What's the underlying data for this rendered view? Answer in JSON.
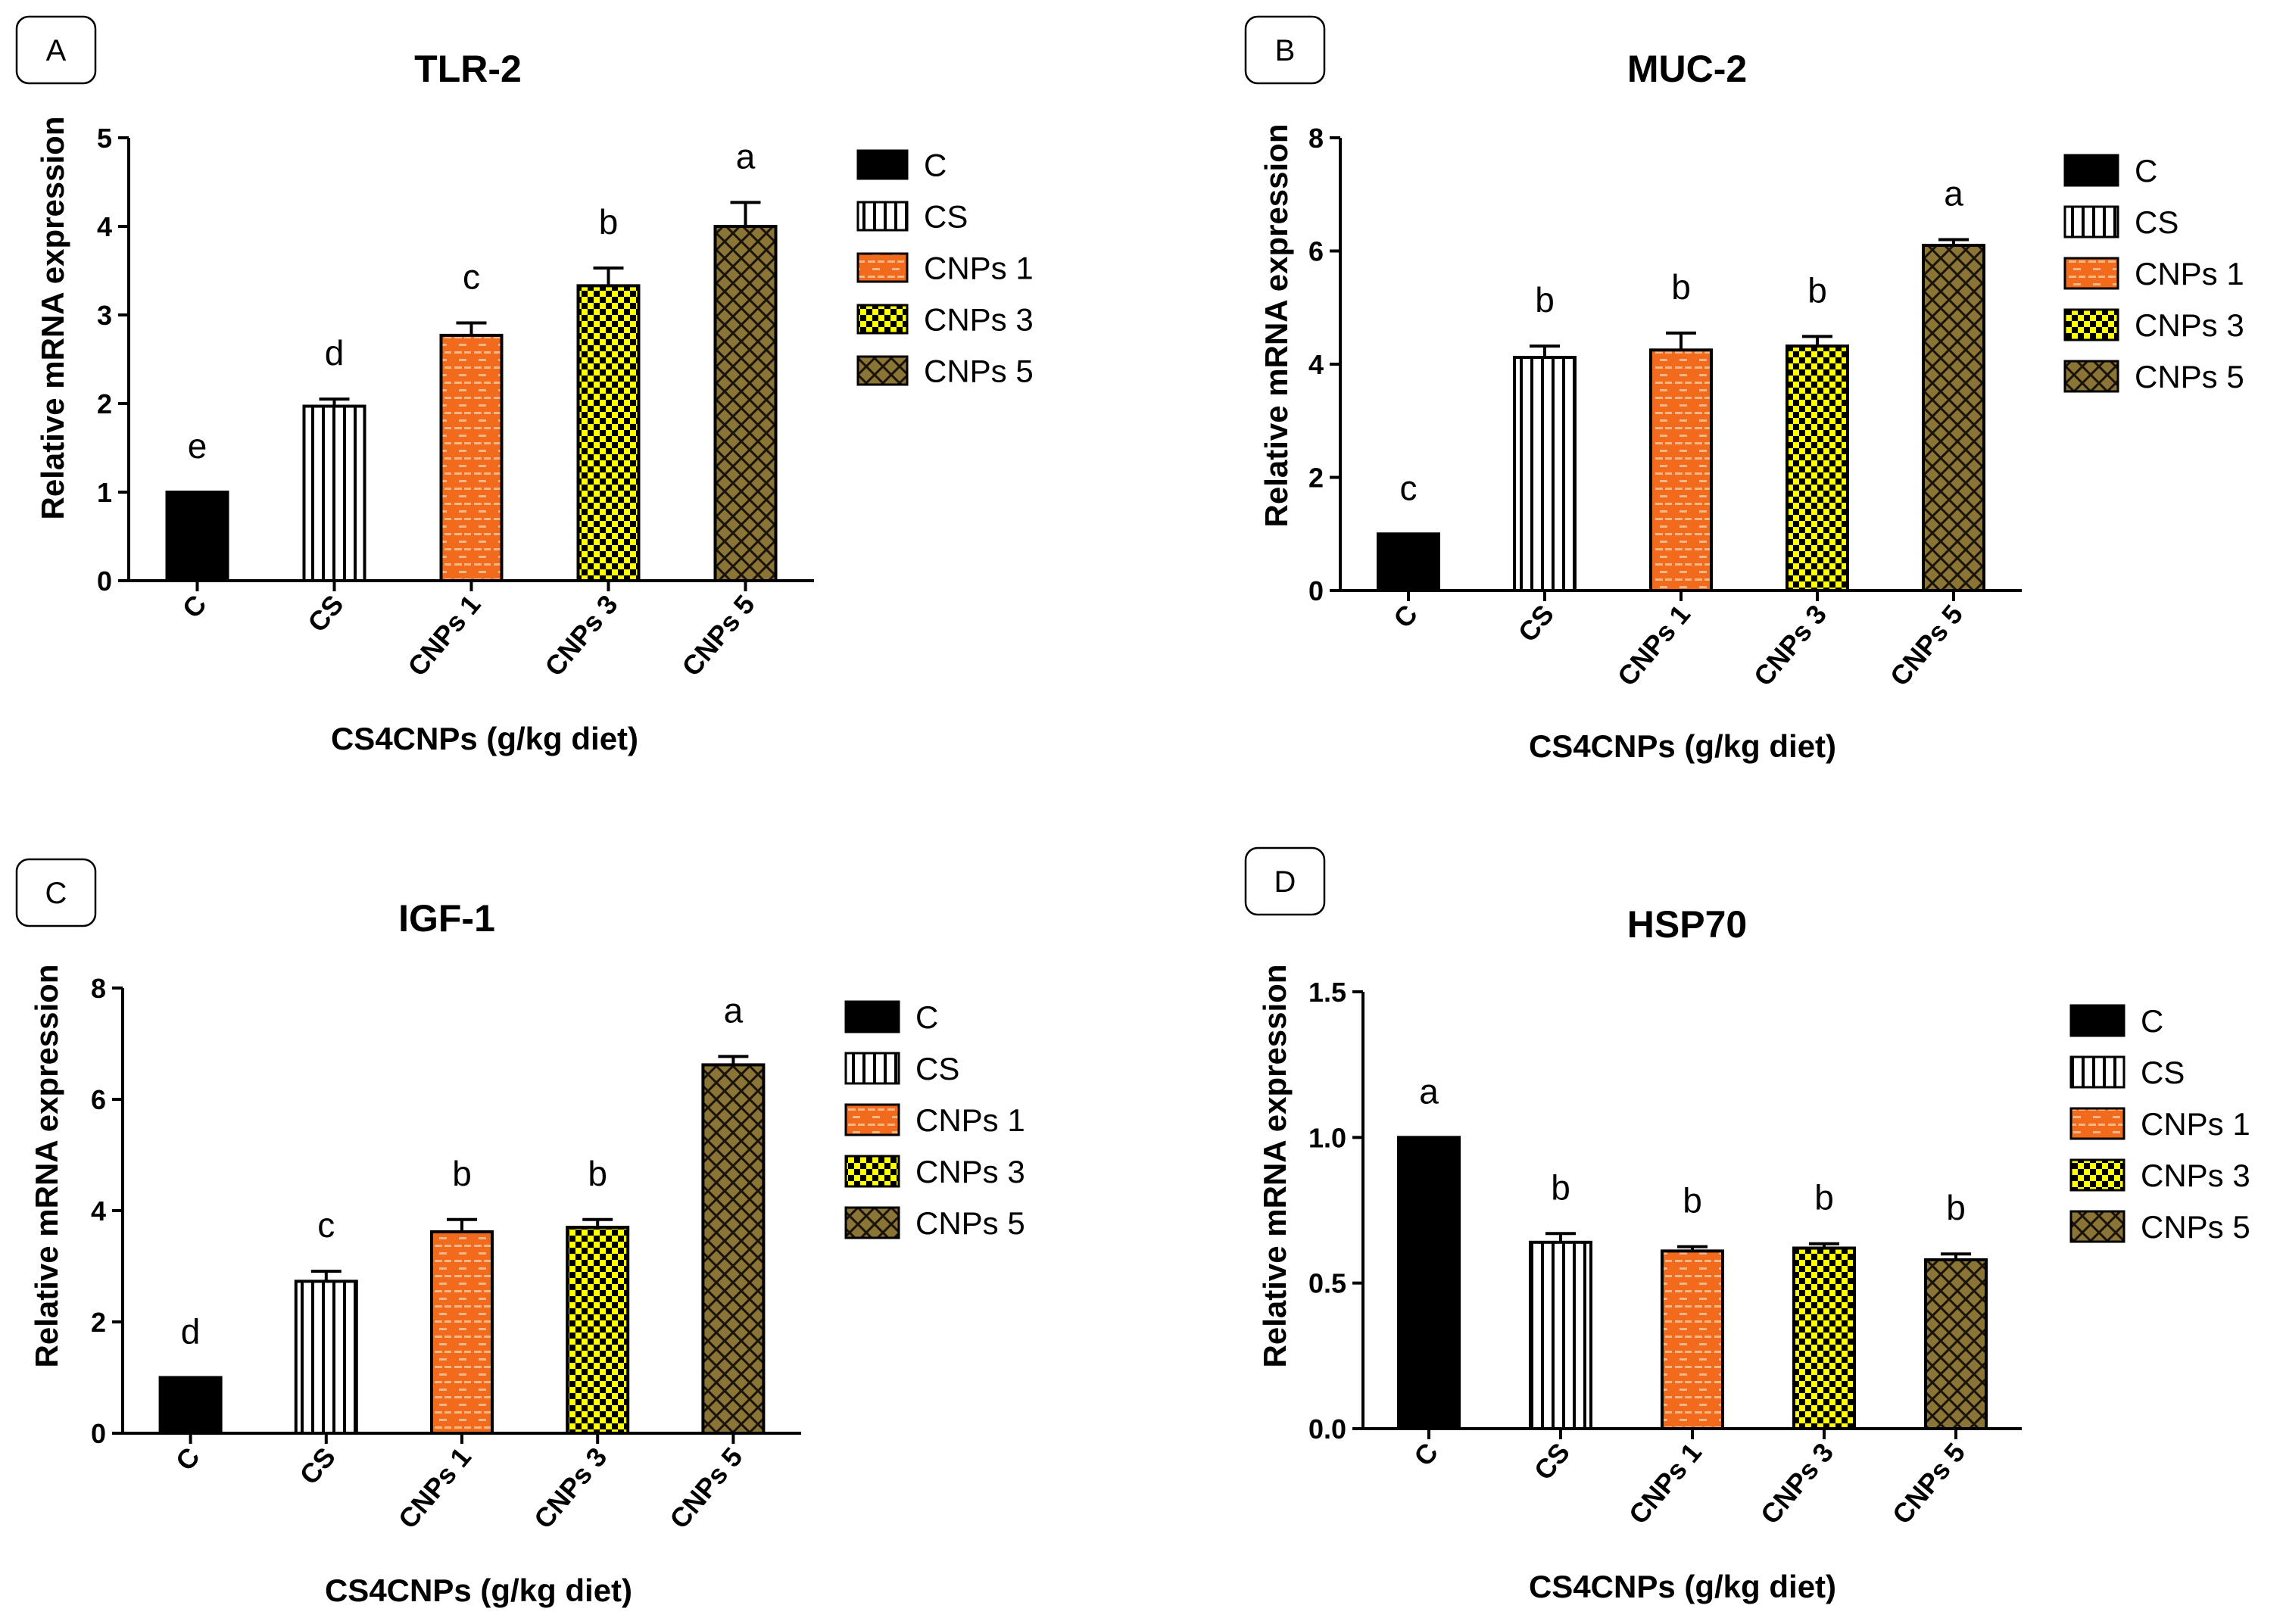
{
  "figure": {
    "colors": {
      "black": "#000000",
      "white": "#ffffff",
      "orange": "#f26a1b",
      "orange_dash": "#f7b58a",
      "yellow": "#ffff00",
      "khaki": "#8b7536"
    },
    "series_styles": [
      {
        "category": "C",
        "fill": "solid-black"
      },
      {
        "category": "CS",
        "fill": "vertical-stripes"
      },
      {
        "category": "CNPs 1",
        "fill": "orange-brick"
      },
      {
        "category": "CNPs 3",
        "fill": "yellow-checker"
      },
      {
        "category": "CNPs 5",
        "fill": "khaki-crosshatch"
      }
    ]
  },
  "chart_data": [
    {
      "panel": "A",
      "type": "bar",
      "title": "TLR-2",
      "ylabel": "Relative mRNA expression",
      "xlabel": "CS4CNPs (g/kg diet)",
      "categories": [
        "C",
        "CS",
        "CNPs 1",
        "CNPs 3",
        "CNPs 5"
      ],
      "values": [
        1.0,
        1.97,
        2.77,
        3.33,
        4.0
      ],
      "errors": [
        0.0,
        0.08,
        0.14,
        0.2,
        0.27
      ],
      "letters": [
        "e",
        "d",
        "c",
        "b",
        "a"
      ],
      "ylim": [
        0,
        5
      ],
      "yticks": [
        "0",
        "1",
        "2",
        "3",
        "4",
        "5"
      ],
      "legend": [
        "C",
        "CS",
        "CNPs 1",
        "CNPs 3",
        "CNPs 5"
      ]
    },
    {
      "panel": "B",
      "type": "bar",
      "title": "MUC-2",
      "ylabel": "Relative mRNA expression",
      "xlabel": "CS4CNPs (g/kg diet)",
      "categories": [
        "C",
        "CS",
        "CNPs 1",
        "CNPs 3",
        "CNPs 5"
      ],
      "values": [
        1.0,
        4.12,
        4.25,
        4.32,
        6.1
      ],
      "errors": [
        0.0,
        0.2,
        0.3,
        0.17,
        0.1
      ],
      "letters": [
        "c",
        "b",
        "b",
        "b",
        "a"
      ],
      "ylim": [
        0,
        8
      ],
      "yticks": [
        "0",
        "2",
        "4",
        "6",
        "8"
      ],
      "legend": [
        "C",
        "CS",
        "CNPs 1",
        "CNPs 3",
        "CNPs 5"
      ]
    },
    {
      "panel": "C",
      "type": "bar",
      "title": "IGF-1",
      "ylabel": "Relative mRNA expression",
      "xlabel": "CS4CNPs (g/kg diet)",
      "categories": [
        "C",
        "CS",
        "CNPs 1",
        "CNPs 3",
        "CNPs 5"
      ],
      "values": [
        1.0,
        2.73,
        3.62,
        3.7,
        6.62
      ],
      "errors": [
        0.0,
        0.18,
        0.22,
        0.14,
        0.15
      ],
      "letters": [
        "d",
        "c",
        "b",
        "b",
        "a"
      ],
      "ylim": [
        0,
        8
      ],
      "yticks": [
        "0",
        "2",
        "4",
        "6",
        "8"
      ],
      "legend": [
        "C",
        "CS",
        "CNPs 1",
        "CNPs 3",
        "CNPs 5"
      ]
    },
    {
      "panel": "D",
      "type": "bar",
      "title": "HSP70",
      "ylabel": "Relative mRNA expression",
      "xlabel": "CS4CNPs (g/kg diet)",
      "categories": [
        "C",
        "CS",
        "CNPs 1",
        "CNPs 3",
        "CNPs 5"
      ],
      "values": [
        1.0,
        0.64,
        0.61,
        0.62,
        0.58
      ],
      "errors": [
        0.0,
        0.03,
        0.015,
        0.015,
        0.02
      ],
      "letters": [
        "a",
        "b",
        "b",
        "b",
        "b"
      ],
      "ylim": [
        0,
        1.5
      ],
      "yticks": [
        "0.0",
        "0.5",
        "1.0",
        "1.5"
      ],
      "legend": [
        "C",
        "CS",
        "CNPs 1",
        "CNPs 3",
        "CNPs 5"
      ]
    }
  ]
}
